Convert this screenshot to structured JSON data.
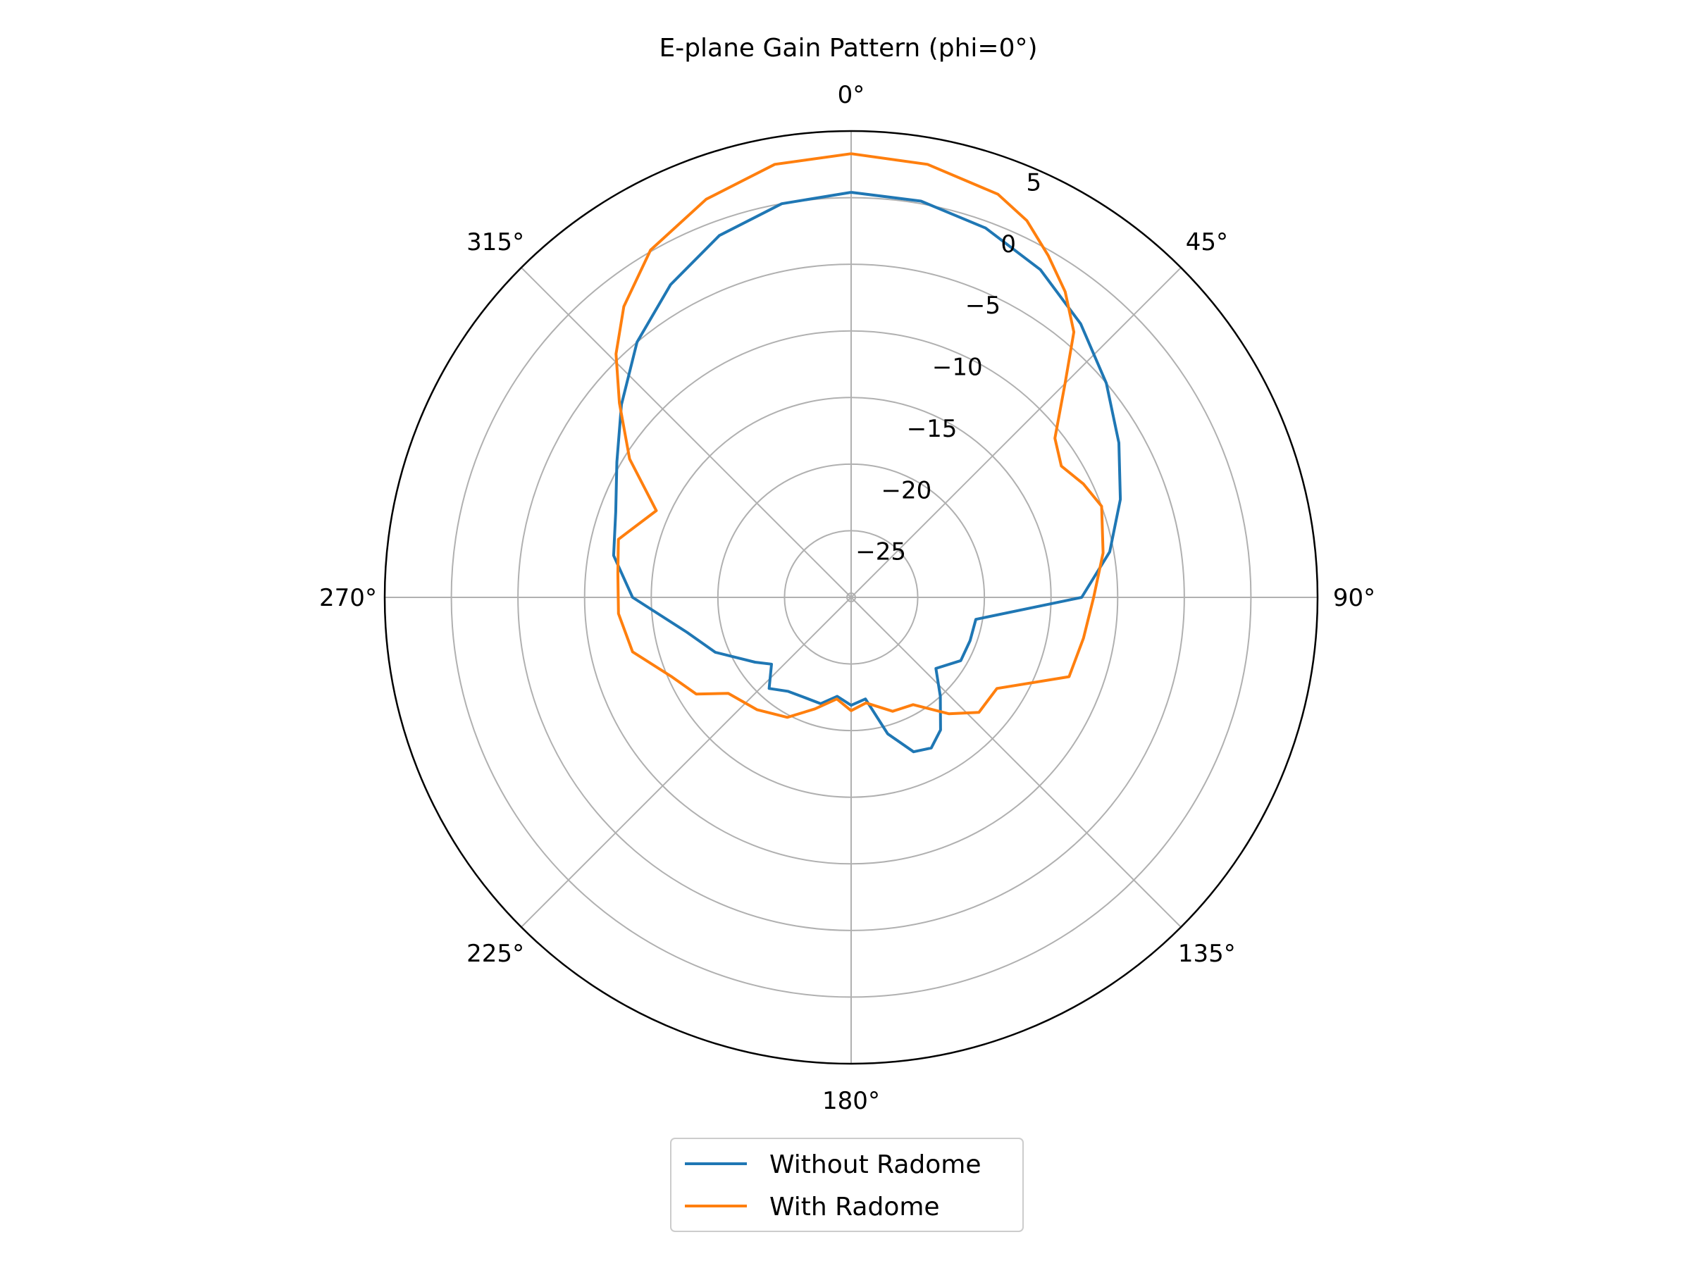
{
  "chart_data": {
    "type": "line",
    "projection": "polar",
    "title": "E-plane Gain Pattern (phi=0°)",
    "theta_zero_location": "top",
    "theta_direction": "clockwise",
    "angle_ticks": [
      "0°",
      "45°",
      "90°",
      "135°",
      "180°",
      "225°",
      "270°",
      "315°"
    ],
    "angle_tick_values": [
      0,
      45,
      90,
      135,
      180,
      225,
      270,
      315
    ],
    "radial_ticks": [
      "−25",
      "−20",
      "−15",
      "−10",
      "−5",
      "0",
      "5"
    ],
    "radial_tick_values": [
      -25,
      -20,
      -15,
      -10,
      -5,
      0,
      5
    ],
    "rlim": [
      -30,
      5
    ],
    "grid": true,
    "legend_location": "below",
    "series": [
      {
        "name": "Without Radome",
        "color": "#1f77b4",
        "points": [
          [
            0,
            0.4
          ],
          [
            10,
            0.2
          ],
          [
            20,
            -0.5
          ],
          [
            30,
            -1.6
          ],
          [
            40,
            -3.2
          ],
          [
            50,
            -5.0
          ],
          [
            60,
            -6.8
          ],
          [
            70,
            -8.5
          ],
          [
            80,
            -10.3
          ],
          [
            90,
            -12.7
          ],
          [
            100,
            -20.5
          ],
          [
            110,
            -20.5
          ],
          [
            120,
            -20.5
          ],
          [
            130,
            -21.7
          ],
          [
            138,
            -20.0
          ],
          [
            146,
            -18.0
          ],
          [
            152,
            -17.2
          ],
          [
            158,
            -17.5
          ],
          [
            165,
            -19.4
          ],
          [
            172,
            -22.3
          ],
          [
            180,
            -21.9
          ],
          [
            188,
            -22.5
          ],
          [
            196,
            -21.7
          ],
          [
            206,
            -21.7
          ],
          [
            214,
            -21.5
          ],
          [
            222,
            -20.8
          ],
          [
            230,
            -22.2
          ],
          [
            236,
            -21.3
          ],
          [
            248,
            -19.0
          ],
          [
            258,
            -17.4
          ],
          [
            270,
            -13.6
          ],
          [
            280,
            -11.9
          ],
          [
            290,
            -11.2
          ],
          [
            300,
            -9.7
          ],
          [
            310,
            -7.5
          ],
          [
            320,
            -5.0
          ],
          [
            330,
            -2.9
          ],
          [
            340,
            -1.1
          ],
          [
            350,
            0.0
          ],
          [
            360,
            0.4
          ]
        ]
      },
      {
        "name": "With Radome",
        "color": "#ff7f0e",
        "points": [
          [
            0,
            3.3
          ],
          [
            10,
            3.0
          ],
          [
            20,
            2.2
          ],
          [
            25,
            1.2
          ],
          [
            30,
            -0.4
          ],
          [
            35,
            -2.0
          ],
          [
            40,
            -4.0
          ],
          [
            45,
            -7.3
          ],
          [
            52,
            -10.6
          ],
          [
            58,
            -11.4
          ],
          [
            64,
            -10.6
          ],
          [
            70,
            -10.0
          ],
          [
            80,
            -10.8
          ],
          [
            90,
            -11.8
          ],
          [
            100,
            -12.3
          ],
          [
            110,
            -12.6
          ],
          [
            122,
            -17.1
          ],
          [
            132,
            -17.1
          ],
          [
            140,
            -18.6
          ],
          [
            150,
            -20.7
          ],
          [
            160,
            -20.9
          ],
          [
            172,
            -22.0
          ],
          [
            180,
            -21.5
          ],
          [
            188,
            -22.3
          ],
          [
            198,
            -21.2
          ],
          [
            208,
            -19.8
          ],
          [
            220,
            -19.0
          ],
          [
            232,
            -18.3
          ],
          [
            238,
            -16.3
          ],
          [
            246,
            -15.3
          ],
          [
            256,
            -13.1
          ],
          [
            266,
            -12.5
          ],
          [
            276,
            -12.4
          ],
          [
            284,
            -12.0
          ],
          [
            294,
            -14.0
          ],
          [
            302,
            -10.4
          ],
          [
            310,
            -7.3
          ],
          [
            316,
            -4.6
          ],
          [
            322,
            -2.3
          ],
          [
            330,
            0.1
          ],
          [
            340,
            1.8
          ],
          [
            350,
            3.0
          ],
          [
            360,
            3.3
          ]
        ]
      }
    ]
  }
}
